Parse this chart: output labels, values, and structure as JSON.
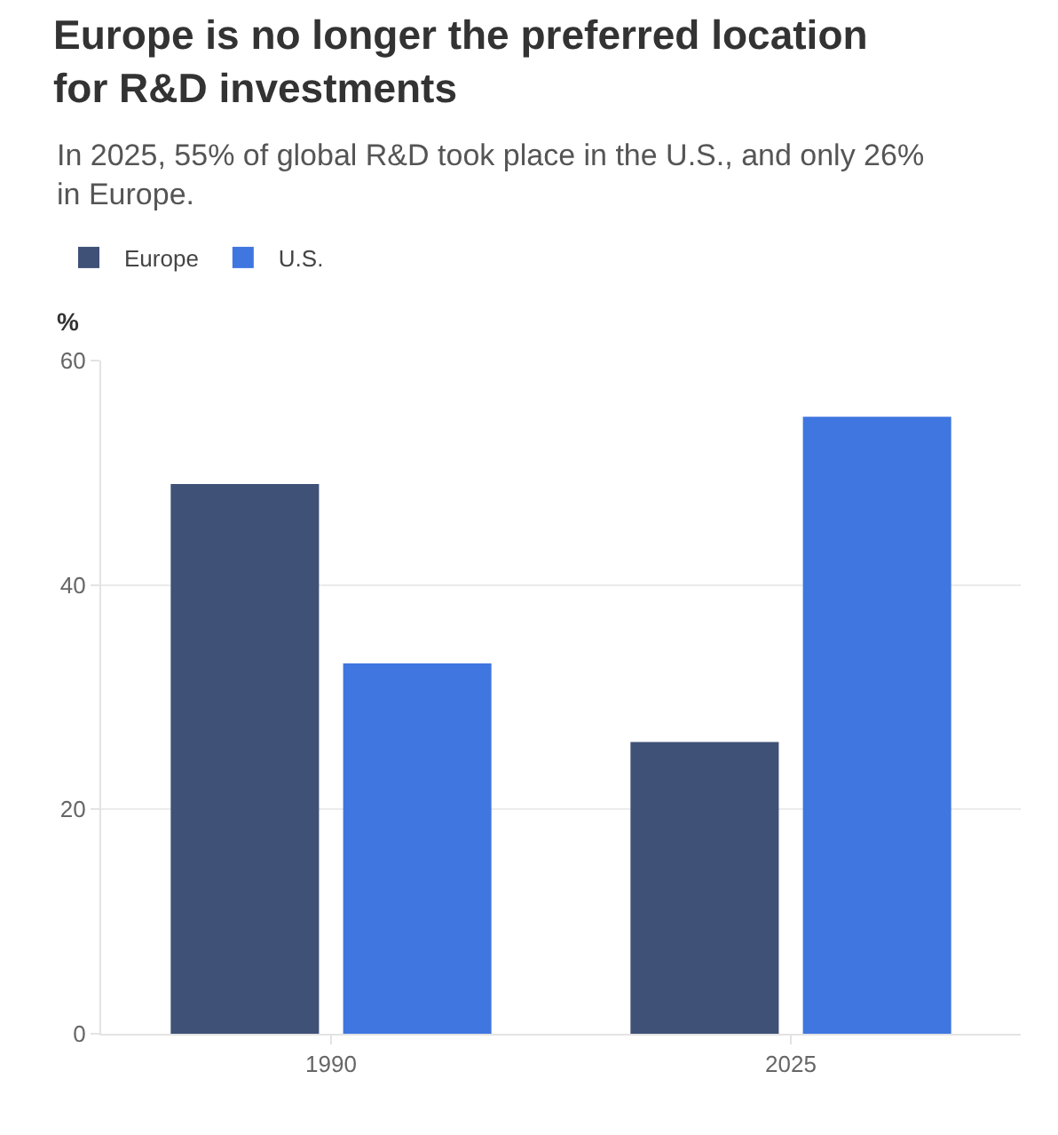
{
  "chart_data": {
    "type": "bar",
    "title": "Europe is no longer the preferred location for R&D investments",
    "subtitle": "In 2025, 55% of global R&D took place in the U.S., and only 26% in Europe.",
    "ylabel": "%",
    "categories": [
      "1990",
      "2025"
    ],
    "series": [
      {
        "name": "Europe",
        "color": "#3f5177",
        "values": [
          49,
          26
        ]
      },
      {
        "name": "U.S.",
        "color": "#3f76e0",
        "values": [
          33,
          55
        ]
      }
    ],
    "ylim": [
      0,
      60
    ],
    "yticks": [
      0,
      20,
      40,
      60
    ],
    "grid": "y",
    "legend": "top left"
  }
}
